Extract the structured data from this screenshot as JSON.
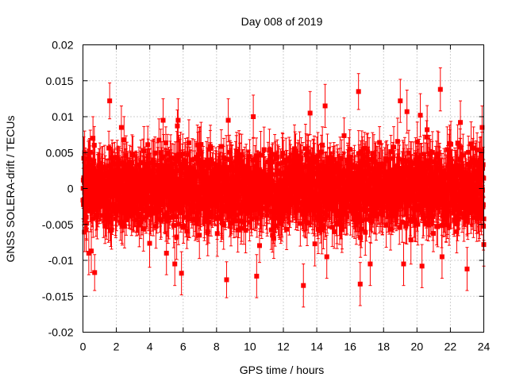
{
  "chart_data": {
    "type": "scatter",
    "title": "Day 008 of 2019",
    "xlabel": "GPS time / hours",
    "ylabel": "GNSS SOLERA-drift / TECUs",
    "xlim": [
      0,
      24
    ],
    "ylim": [
      -0.02,
      0.02
    ],
    "xticks": [
      0,
      2,
      4,
      6,
      8,
      10,
      12,
      14,
      16,
      18,
      20,
      22,
      24
    ],
    "xtick_labels": [
      "0",
      "2",
      "4",
      "6",
      "8",
      "10",
      "12",
      "14",
      "16",
      "18",
      "20",
      "22",
      "24"
    ],
    "yticks": [
      -0.02,
      -0.015,
      -0.01,
      -0.005,
      0,
      0.005,
      0.01,
      0.015,
      0.02
    ],
    "ytick_labels": [
      "-0.02",
      "-0.015",
      "-0.01",
      "-0.005",
      "0",
      "0.005",
      "0.01",
      "0.015",
      "0.02"
    ],
    "grid": true,
    "series_color": "#ff0000",
    "marker": "square",
    "error_bars": true,
    "series": [
      {
        "name": "SOLERA-drift",
        "description": "Dense cloud of points spanning 0-24 h, mostly within about ±0.007 TECU, each with error bars of roughly ±0.003 TECU",
        "x": [
          0.05,
          0.1,
          0.2,
          0.35,
          0.5,
          0.6,
          0.7,
          1.6,
          2.3,
          4.8,
          5.0,
          5.5,
          5.7,
          5.9,
          8.6,
          8.7,
          10.2,
          10.4,
          13.2,
          13.6,
          14.5,
          14.6,
          16.5,
          16.6,
          17.2,
          19.0,
          19.2,
          19.4,
          20.2,
          20.3,
          21.4,
          21.5,
          22.6,
          23.0,
          23.9,
          24.0
        ],
        "y": [
          0.0015,
          0.005,
          -0.004,
          -0.009,
          -0.0087,
          0.007,
          -0.0117,
          0.0122,
          0.0085,
          0.0095,
          -0.009,
          -0.0105,
          0.0095,
          -0.0118,
          -0.0127,
          0.0095,
          0.01,
          -0.0122,
          -0.0135,
          0.0105,
          0.0115,
          -0.0095,
          0.0135,
          -0.0133,
          -0.0105,
          0.0122,
          -0.0105,
          0.0107,
          0.0102,
          -0.0108,
          0.0138,
          -0.0095,
          0.0092,
          -0.0112,
          0.0085,
          -0.0078
        ],
        "err": [
          0.003,
          0.003,
          0.003,
          0.003,
          0.003,
          0.003,
          0.0025,
          0.0025,
          0.003,
          0.003,
          0.003,
          0.003,
          0.003,
          0.003,
          0.0025,
          0.003,
          0.003,
          0.003,
          0.003,
          0.003,
          0.003,
          0.003,
          0.0025,
          0.003,
          0.003,
          0.003,
          0.003,
          0.003,
          0.003,
          0.003,
          0.003,
          0.003,
          0.003,
          0.003,
          0.003,
          0.003
        ]
      }
    ]
  }
}
